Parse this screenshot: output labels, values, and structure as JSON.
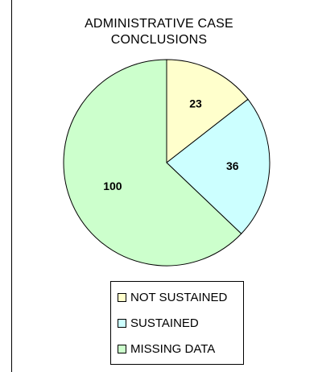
{
  "chart_data": {
    "type": "pie",
    "title_lines": [
      "ADMINISTRATIVE CASE",
      "CONCLUSIONS"
    ],
    "slices": [
      {
        "label": "NOT SUSTAINED",
        "value": 23,
        "color": "#FFFFCC"
      },
      {
        "label": "SUSTAINED",
        "value": 36,
        "color": "#CCFFFF"
      },
      {
        "label": "MISSING DATA",
        "value": 100,
        "color": "#CCFFCC"
      }
    ],
    "start_angle_deg": 0,
    "direction": "clockwise",
    "data_labels": true,
    "legend_position": "bottom"
  }
}
